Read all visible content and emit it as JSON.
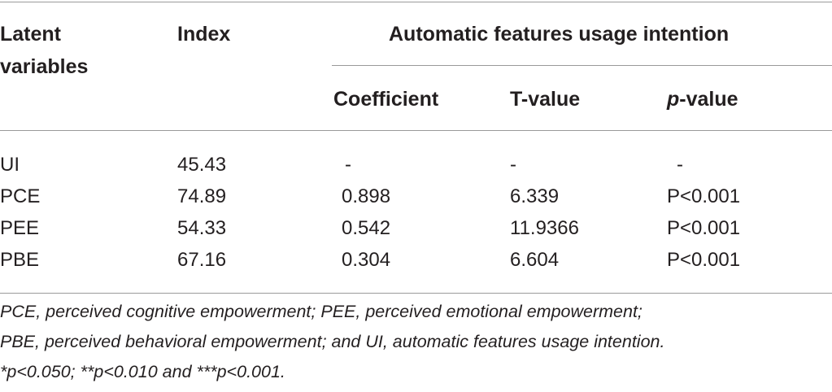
{
  "table": {
    "header": {
      "latent": "Latent variables",
      "index": "Index",
      "group": "Automatic features usage intention",
      "columns": [
        "Coefficient",
        "T-value",
        {
          "italic": "p",
          "rest": "-value"
        }
      ]
    },
    "rows": [
      [
        "UI",
        "45.43",
        "-",
        "-",
        "-"
      ],
      [
        "PCE",
        "74.89",
        "0.898",
        "6.339",
        "P<0.001"
      ],
      [
        "PEE",
        "54.33",
        "0.542",
        "11.9366",
        "P<0.001"
      ],
      [
        "PBE",
        "67.16",
        "0.304",
        "6.604",
        "P<0.001"
      ]
    ]
  },
  "footnote": [
    "PCE, perceived cognitive empowerment; PEE, perceived emotional empowerment;",
    "PBE, perceived behavioral empowerment; and UI, automatic features usage intention.",
    "*p<0.050; **p<0.010 and ***p<0.001."
  ]
}
